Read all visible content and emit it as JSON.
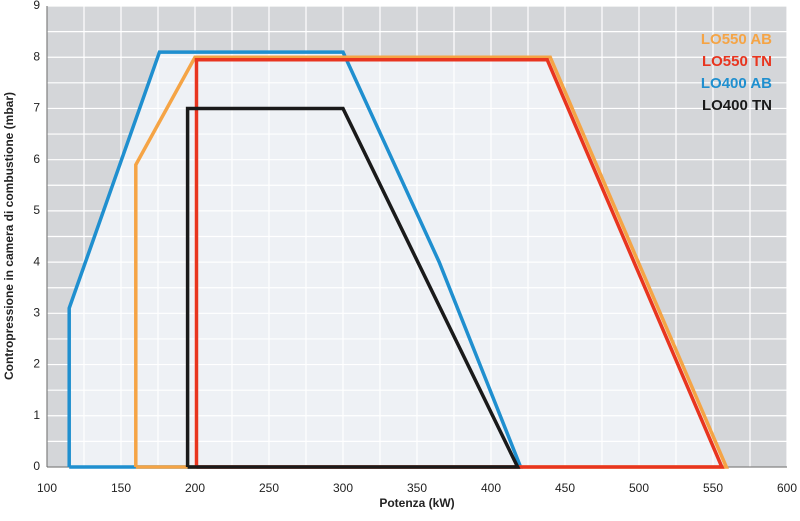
{
  "chart_data": {
    "type": "line",
    "x_label": "Potenza (kW)",
    "y_label": "Contropressione in camera di combustione (mbar)",
    "xlim": [
      100,
      600
    ],
    "xticks": [
      100,
      150,
      200,
      250,
      300,
      350,
      400,
      450,
      500,
      550,
      600
    ],
    "ylim": [
      0,
      9
    ],
    "yticks": [
      0,
      1,
      2,
      3,
      4,
      5,
      6,
      7,
      8,
      9
    ],
    "grid": true,
    "legend": "upper right",
    "series": [
      {
        "name": "LO550 AB",
        "color": "#f5a445",
        "x": [
          160,
          160,
          200,
          440,
          559,
          160
        ],
        "values": [
          0,
          5.9,
          8,
          8,
          0,
          0
        ]
      },
      {
        "name": "LO550 TN",
        "color": "#e8351f",
        "x": [
          201,
          201,
          438,
          556,
          201
        ],
        "values": [
          0,
          7.95,
          7.95,
          0,
          0
        ]
      },
      {
        "name": "LO400 AB",
        "color": "#1f8fcf",
        "x": [
          115,
          115,
          176,
          300,
          365,
          420,
          115
        ],
        "values": [
          0,
          3.1,
          8.1,
          8.1,
          4,
          0,
          0
        ]
      },
      {
        "name": "LO400 TN",
        "color": "#1a1a1a",
        "x": [
          195,
          195,
          300,
          418,
          195
        ],
        "values": [
          0,
          7,
          7,
          0,
          0
        ]
      }
    ]
  }
}
